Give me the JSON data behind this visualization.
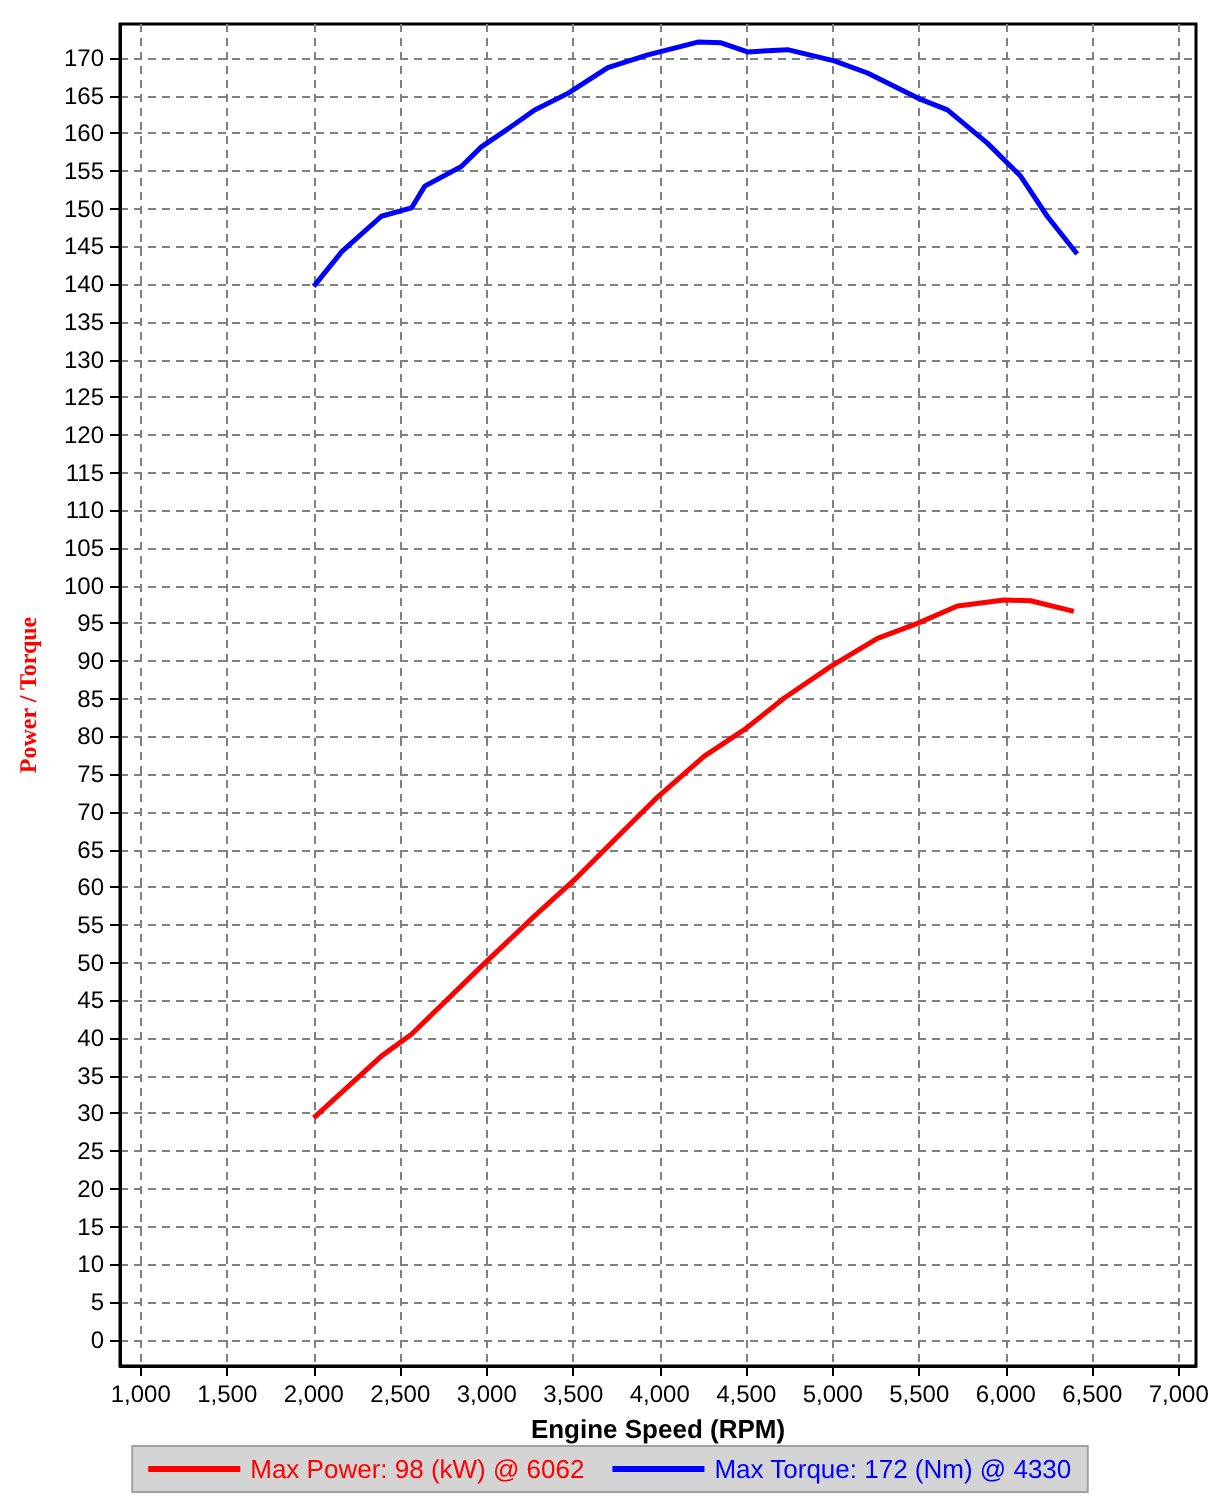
{
  "chart_data": {
    "type": "line",
    "xlabel": "Engine Speed (RPM)",
    "ylabel": "Power / Torque",
    "xlim": [
      880,
      7100
    ],
    "ylim": [
      -3.5,
      174.5
    ],
    "xticks": [
      {
        "value": 1000,
        "label": "1,000"
      },
      {
        "value": 1500,
        "label": "1,500"
      },
      {
        "value": 2000,
        "label": "2,000"
      },
      {
        "value": 2500,
        "label": "2,500"
      },
      {
        "value": 3000,
        "label": "3,000"
      },
      {
        "value": 3500,
        "label": "3,500"
      },
      {
        "value": 4000,
        "label": "4,000"
      },
      {
        "value": 4500,
        "label": "4,500"
      },
      {
        "value": 5000,
        "label": "5,000"
      },
      {
        "value": 5500,
        "label": "5,500"
      },
      {
        "value": 6000,
        "label": "6,000"
      },
      {
        "value": 6500,
        "label": "6,500"
      },
      {
        "value": 7000,
        "label": "7,000"
      }
    ],
    "yticks": [
      0,
      5,
      10,
      15,
      20,
      25,
      30,
      35,
      40,
      45,
      50,
      55,
      60,
      65,
      70,
      75,
      80,
      85,
      90,
      95,
      100,
      105,
      110,
      115,
      120,
      125,
      130,
      135,
      140,
      145,
      150,
      155,
      160,
      165,
      170
    ],
    "grid": true,
    "legend": "bottom",
    "marker": "none",
    "line_style": "solid",
    "series": [
      {
        "name": "Max Power: 98 (kW) @ 6062",
        "color": "#ff0000",
        "x": [
          2000,
          2391,
          2565,
          2969,
          3277,
          3508,
          3739,
          3989,
          4258,
          4489,
          4720,
          4989,
          5259,
          5490,
          5721,
          5990,
          6144,
          6394
        ],
        "values": [
          29.4,
          37.6,
          40.5,
          49.5,
          56.2,
          61.0,
          66.3,
          72.0,
          77.4,
          80.9,
          85.1,
          89.3,
          93.0,
          95.0,
          97.3,
          98.1,
          98.0,
          96.6
        ]
      },
      {
        "name": "Max Torque: 172 (Nm) @ 4330",
        "color": "#0000ff",
        "x": [
          2000,
          2162,
          2391,
          2565,
          2642,
          2853,
          2969,
          3142,
          3277,
          3469,
          3700,
          3931,
          4220,
          4355,
          4508,
          4739,
          5009,
          5201,
          5509,
          5663,
          5894,
          6087,
          6240,
          6413
        ],
        "values": [
          139.7,
          144.3,
          149.0,
          150.1,
          153.0,
          155.6,
          158.2,
          160.9,
          163.1,
          165.3,
          168.7,
          170.4,
          172.1,
          172.0,
          170.8,
          171.1,
          169.6,
          168.0,
          164.5,
          163.1,
          158.7,
          154.3,
          149.0,
          144.0
        ]
      }
    ]
  }
}
